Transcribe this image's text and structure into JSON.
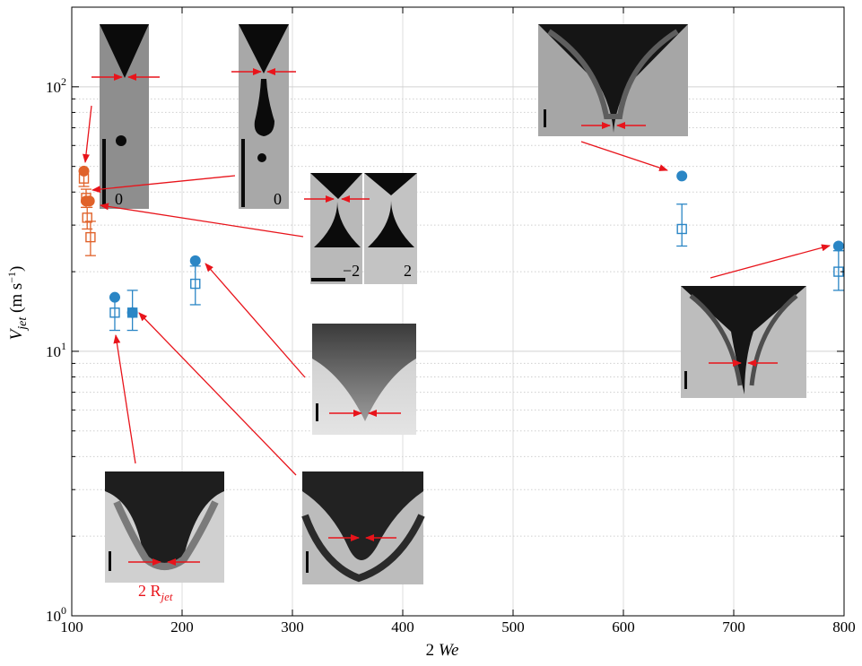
{
  "chart_data": {
    "type": "scatter",
    "xlabel": "2 We",
    "ylabel": "V_jet (m s^-1)",
    "x_ticks": [
      "100",
      "200",
      "300",
      "400",
      "500",
      "600",
      "700",
      "800"
    ],
    "y_ticks": [
      {
        "base": "10",
        "exp": "0"
      },
      {
        "base": "10",
        "exp": "1"
      },
      {
        "base": "10",
        "exp": "2"
      }
    ],
    "xlim": [
      100,
      800
    ],
    "ylim": [
      1,
      200
    ],
    "yscale": "log",
    "grid": true,
    "series": [
      {
        "color": "#E0622A",
        "marker": "filled-circle",
        "points": [
          {
            "x": 111,
            "y": 48
          },
          {
            "x": 113,
            "y": 37
          },
          {
            "x": 116,
            "y": 37
          }
        ]
      },
      {
        "color": "#E0622A",
        "marker": "open-square",
        "points": [
          {
            "x": 111,
            "y": 45,
            "err": [
              42,
              48
            ]
          },
          {
            "x": 113,
            "y": 38,
            "err": [
              35,
              41
            ]
          },
          {
            "x": 114,
            "y": 32,
            "err": [
              29,
              35
            ]
          },
          {
            "x": 117,
            "y": 27,
            "err": [
              23,
              31
            ]
          }
        ]
      },
      {
        "color": "#2B86C5",
        "marker": "filled-circle",
        "points": [
          {
            "x": 139,
            "y": 16
          },
          {
            "x": 155,
            "y": 14
          },
          {
            "x": 212,
            "y": 22
          },
          {
            "x": 653,
            "y": 46
          },
          {
            "x": 795,
            "y": 25
          }
        ]
      },
      {
        "color": "#2B86C5",
        "marker": "open-square",
        "points": [
          {
            "x": 139,
            "y": 14,
            "err": [
              12,
              16
            ]
          },
          {
            "x": 155,
            "y": 14,
            "err": [
              12,
              17
            ]
          },
          {
            "x": 212,
            "y": 18,
            "err": [
              15,
              21
            ]
          },
          {
            "x": 653,
            "y": 29,
            "err": [
              25,
              36
            ]
          },
          {
            "x": 795,
            "y": 20,
            "err": [
              17,
              24
            ]
          }
        ]
      }
    ],
    "annotations": {
      "inset_labels": [
        "0",
        "0",
        "−2",
        "2"
      ],
      "radius_label": {
        "base": "2 R",
        "sub": "jet"
      }
    }
  },
  "colors": {
    "arrow": "#E8141B",
    "orange": "#E0622A",
    "blue": "#2B86C5"
  }
}
